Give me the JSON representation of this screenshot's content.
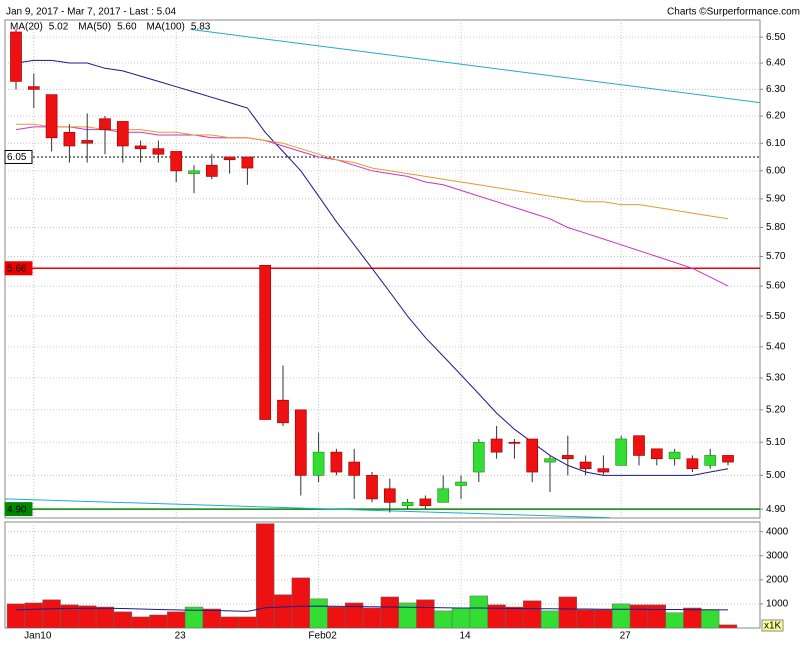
{
  "header": {
    "title": "Jan 9, 2017 - Mar 7, 2017 - Last : 5.04",
    "credit": "Charts ©Surperformance.com"
  },
  "chart_data": [
    {
      "type": "candlestick",
      "categories": [
        null,
        "Jan10",
        null,
        null,
        null,
        null,
        null,
        null,
        null,
        "23",
        null,
        null,
        null,
        null,
        null,
        null,
        null,
        "Feb02",
        null,
        null,
        null,
        null,
        null,
        null,
        null,
        "14",
        null,
        null,
        null,
        null,
        null,
        null,
        null,
        null,
        "27",
        null,
        null,
        null,
        null,
        null,
        null
      ],
      "open": [
        6.52,
        6.31,
        6.28,
        6.14,
        6.11,
        6.19,
        6.18,
        6.09,
        6.08,
        6.07,
        5.99,
        6.02,
        6.05,
        6.05,
        5.67,
        5.23,
        5.2,
        5.0,
        5.07,
        5.04,
        5.0,
        4.96,
        4.91,
        4.93,
        4.92,
        4.97,
        5.01,
        5.11,
        5.1,
        5.11,
        5.04,
        5.06,
        5.04,
        5.02,
        5.03,
        5.12,
        5.08,
        5.05,
        5.05,
        5.03,
        5.06
      ],
      "high": [
        6.53,
        6.36,
        6.28,
        6.17,
        6.21,
        6.2,
        6.18,
        6.11,
        6.11,
        6.07,
        6.02,
        6.06,
        6.05,
        6.05,
        5.67,
        5.34,
        5.2,
        5.13,
        5.08,
        5.08,
        5.01,
        4.99,
        4.93,
        4.94,
        5.0,
        5.0,
        5.11,
        5.15,
        5.11,
        5.11,
        5.06,
        5.12,
        5.06,
        5.06,
        5.12,
        5.12,
        5.08,
        5.08,
        5.06,
        5.08,
        5.06
      ],
      "low": [
        6.3,
        6.23,
        6.07,
        6.03,
        6.03,
        6.06,
        6.03,
        6.03,
        6.03,
        5.96,
        5.92,
        5.97,
        5.99,
        5.95,
        5.17,
        5.15,
        4.94,
        4.98,
        5.0,
        4.93,
        4.92,
        4.89,
        4.9,
        4.9,
        4.92,
        4.93,
        4.98,
        5.05,
        5.05,
        4.98,
        4.95,
        5.0,
        5.0,
        5.0,
        5.03,
        5.03,
        5.03,
        5.03,
        5.01,
        5.02,
        5.03
      ],
      "close": [
        6.33,
        6.3,
        6.12,
        6.09,
        6.1,
        6.15,
        6.09,
        6.08,
        6.06,
        6.0,
        6.0,
        5.98,
        6.04,
        6.01,
        5.17,
        5.16,
        5.0,
        5.07,
        5.01,
        5.0,
        4.93,
        4.92,
        4.92,
        4.91,
        4.96,
        4.98,
        5.1,
        5.07,
        5.1,
        5.01,
        5.05,
        5.05,
        5.02,
        5.01,
        5.11,
        5.06,
        5.05,
        5.07,
        5.02,
        5.06,
        5.04
      ],
      "up_color": "#33dd33",
      "down_color": "#ee1111",
      "log_scale": true,
      "grid": true,
      "ylim": [
        4.874,
        6.567
      ],
      "yticks": [
        {
          "value": 4.9,
          "label": "4.90"
        },
        {
          "value": 5.0,
          "label": "5.00"
        },
        {
          "value": 5.1,
          "label": "5.10"
        },
        {
          "value": 5.2,
          "label": "5.20"
        },
        {
          "value": 5.3,
          "label": "5.30"
        },
        {
          "value": 5.4,
          "label": "5.40"
        },
        {
          "value": 5.5,
          "label": "5.50"
        },
        {
          "value": 5.6,
          "label": "5.60"
        },
        {
          "value": 5.7,
          "label": "5.70"
        },
        {
          "value": 5.8,
          "label": "5.80"
        },
        {
          "value": 5.9,
          "label": "5.90"
        },
        {
          "value": 6.0,
          "label": "6.00"
        },
        {
          "value": 6.1,
          "label": "6.10"
        },
        {
          "value": 6.2,
          "label": "6.20"
        },
        {
          "value": 6.3,
          "label": "6.30"
        },
        {
          "value": 6.4,
          "label": "6.40"
        },
        {
          "value": 6.5,
          "label": "6.50"
        }
      ],
      "series": [
        {
          "name": "MA(20)",
          "color": "#1a1a8c",
          "legend_value": 5.02,
          "values": [
            6.4,
            6.41,
            6.41,
            6.4,
            6.4,
            6.38,
            6.37,
            6.35,
            6.33,
            6.31,
            6.29,
            6.27,
            6.25,
            6.23,
            6.14,
            6.07,
            6.0,
            5.91,
            5.82,
            5.74,
            5.66,
            5.58,
            5.5,
            5.43,
            5.37,
            5.31,
            5.25,
            5.19,
            5.14,
            5.1,
            5.06,
            5.03,
            5.01,
            5.0,
            5.0,
            5.0,
            5.0,
            5.0,
            5.0,
            5.01,
            5.02
          ]
        },
        {
          "name": "MA(50)",
          "color": "#cc33cc",
          "legend_value": {
            "value": 5.6,
            "label": "5.60"
          },
          "values": [
            6.15,
            6.16,
            6.16,
            6.16,
            6.15,
            6.15,
            6.14,
            6.14,
            6.13,
            6.13,
            6.13,
            6.12,
            6.12,
            6.12,
            6.11,
            6.09,
            6.07,
            6.05,
            6.04,
            6.02,
            6.0,
            5.99,
            5.98,
            5.96,
            5.95,
            5.93,
            5.91,
            5.89,
            5.87,
            5.85,
            5.83,
            5.8,
            5.78,
            5.76,
            5.74,
            5.72,
            5.7,
            5.68,
            5.66,
            5.63,
            5.6
          ]
        },
        {
          "name": "MA(100)",
          "color": "#e69a2e",
          "legend_value": 5.83,
          "values": [
            6.17,
            6.17,
            6.16,
            6.16,
            6.16,
            6.15,
            6.15,
            6.15,
            6.14,
            6.14,
            6.13,
            6.13,
            6.12,
            6.12,
            6.11,
            6.1,
            6.08,
            6.06,
            6.04,
            6.03,
            6.01,
            6.0,
            5.99,
            5.98,
            5.97,
            5.96,
            5.95,
            5.94,
            5.93,
            5.92,
            5.91,
            5.9,
            5.89,
            5.89,
            5.88,
            5.88,
            5.87,
            5.86,
            5.85,
            5.84,
            5.83
          ]
        }
      ],
      "trend_lines": [
        {
          "color": "#22aacc",
          "x": [
            9.8,
            41.8
          ],
          "values": [
            6.53,
            6.25
          ]
        },
        {
          "color": "#22aacc",
          "x": [
            -0.6,
            33.4
          ],
          "values": [
            4.93,
            4.875
          ]
        }
      ],
      "levels": [
        {
          "value": 6.05,
          "color": "#000000",
          "dashed": true
        },
        {
          "value": 5.66,
          "color": "#ee0000"
        },
        {
          "value": 4.9,
          "label": "4.90",
          "color": "#008800"
        }
      ]
    },
    {
      "type": "bar",
      "values": [
        1000,
        1040,
        1170,
        960,
        920,
        870,
        670,
        460,
        540,
        670,
        870,
        790,
        460,
        460,
        4330,
        1380,
        2080,
        1210,
        870,
        1040,
        830,
        1290,
        1040,
        1170,
        710,
        830,
        1330,
        960,
        870,
        1130,
        710,
        1290,
        750,
        750,
        1000,
        960,
        960,
        630,
        830,
        750,
        130
      ],
      "ma_color": "#1a1a8c",
      "ma_values": [
        760,
        780,
        800,
        810,
        820,
        820,
        810,
        790,
        770,
        750,
        740,
        730,
        710,
        690,
        840,
        870,
        900,
        910,
        900,
        890,
        880,
        870,
        860,
        850,
        840,
        830,
        830,
        820,
        810,
        800,
        800,
        790,
        790,
        780,
        780,
        780,
        770,
        770,
        760,
        760,
        750
      ],
      "ylim": [
        0,
        4400
      ],
      "yticks": [
        1000,
        2000,
        3000,
        4000
      ],
      "grid": true,
      "unit_label": "x1K"
    }
  ]
}
